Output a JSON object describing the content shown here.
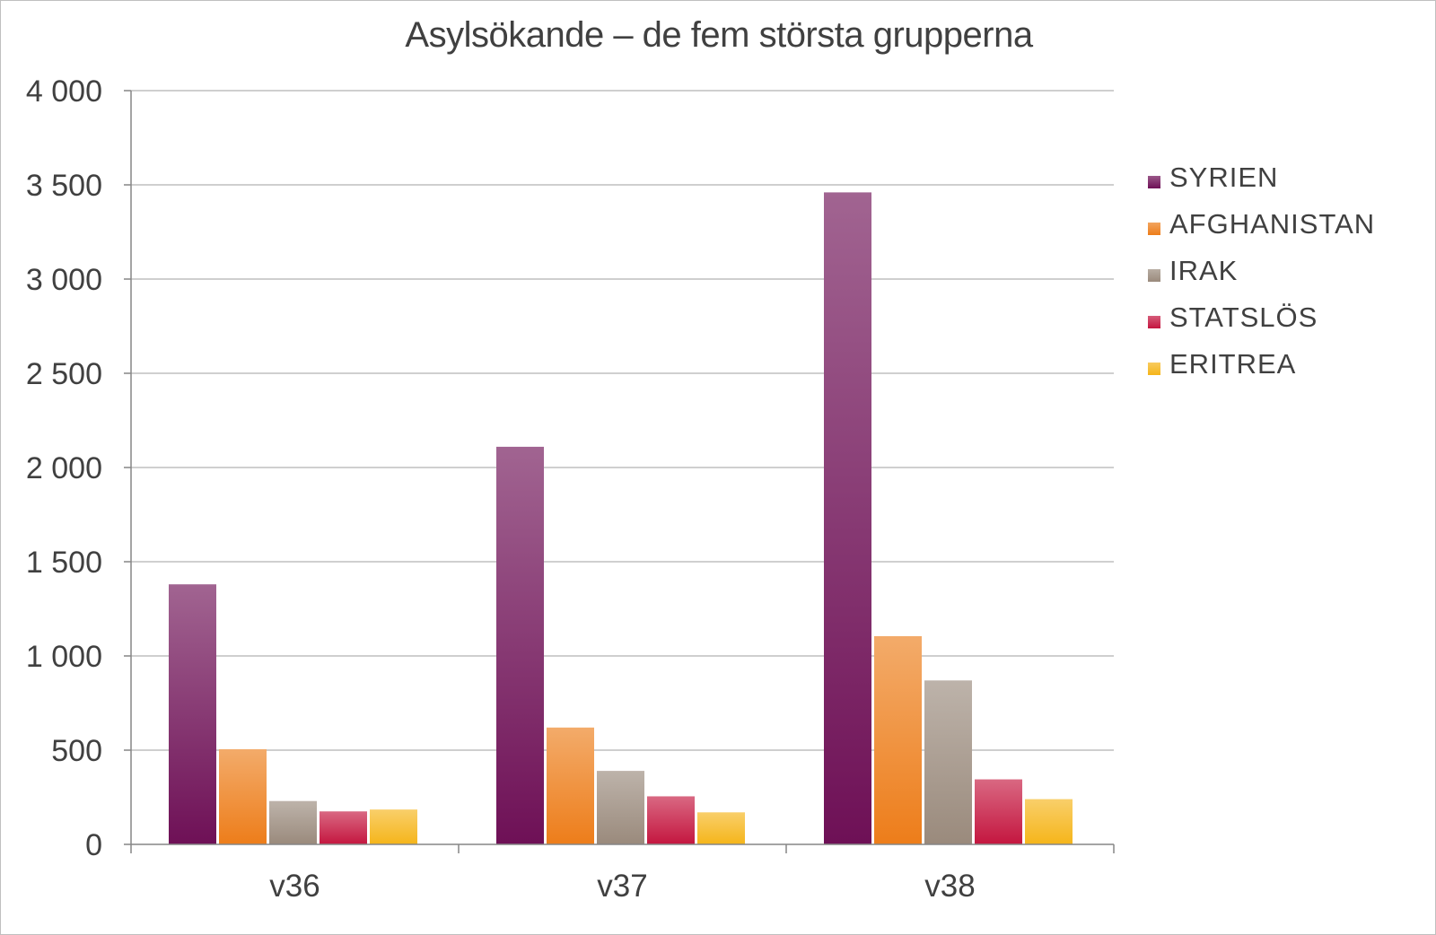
{
  "chart_data": {
    "type": "bar",
    "title": "Asylsökande – de fem största grupperna",
    "xlabel": "",
    "ylabel": "",
    "categories": [
      "v36",
      "v37",
      "v38"
    ],
    "ylim": [
      0,
      4000
    ],
    "yticks": [
      0,
      500,
      1000,
      1500,
      2000,
      2500,
      3000,
      3500,
      4000
    ],
    "ytick_labels": [
      "0",
      "500",
      "1 000",
      "1 500",
      "2 000",
      "2 500",
      "3 000",
      "3 500",
      "4 000"
    ],
    "grid": true,
    "legend_position": "right",
    "series": [
      {
        "name": "SYRIEN",
        "color": "#6e1056",
        "values": [
          1380,
          2110,
          3460
        ]
      },
      {
        "name": "AFGHANISTAN",
        "color": "#ed7d1a",
        "values": [
          505,
          620,
          1105
        ]
      },
      {
        "name": "IRAK",
        "color": "#9a8a7c",
        "values": [
          230,
          390,
          870
        ]
      },
      {
        "name": "STATSLÖS",
        "color": "#c4163f",
        "values": [
          175,
          255,
          345
        ]
      },
      {
        "name": "ERITREA",
        "color": "#f5b51a",
        "values": [
          185,
          170,
          240
        ]
      }
    ]
  }
}
